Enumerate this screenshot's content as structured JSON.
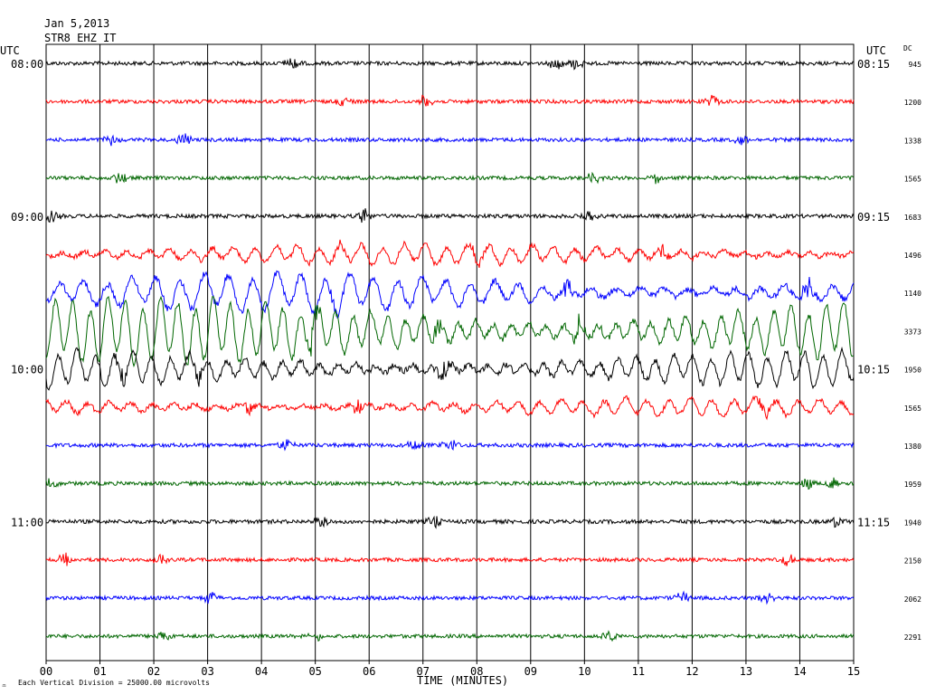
{
  "header": {
    "date": "Jan 5,2013",
    "station": "STR8 EHZ IT",
    "left_tz": "UTC",
    "right_tz": "UTC",
    "dc_label": "DC"
  },
  "footer": {
    "scale_note": "Each Vertical Division = 25000.00 microvolts",
    "corner_mark": "♒"
  },
  "chart_data": {
    "type": "line",
    "title": "",
    "xlabel": "TIME (MINUTES)",
    "ylabel": "",
    "xlim": [
      0,
      15
    ],
    "x_ticks": [
      "00",
      "01",
      "02",
      "03",
      "04",
      "05",
      "06",
      "07",
      "08",
      "09",
      "10",
      "11",
      "12",
      "13",
      "14",
      "15"
    ],
    "grid": true,
    "colors": [
      "#000000",
      "#ff0000",
      "#0000ff",
      "#006600"
    ],
    "left_hour_labels": [
      {
        "row": 0,
        "text": "08:00"
      },
      {
        "row": 4,
        "text": "09:00"
      },
      {
        "row": 8,
        "text": "10:00"
      },
      {
        "row": 12,
        "text": "11:00"
      }
    ],
    "right_hour_labels": [
      {
        "row": 0,
        "text": "08:15"
      },
      {
        "row": 4,
        "text": "09:15"
      },
      {
        "row": 8,
        "text": "10:15"
      },
      {
        "row": 12,
        "text": "11:15"
      }
    ],
    "dc_offsets": [
      945,
      1200,
      1338,
      1565,
      1683,
      1496,
      1140,
      3373,
      1950,
      1565,
      1380,
      1959,
      1940,
      2150,
      2062,
      2291
    ],
    "trace_amplitude": [
      0.25,
      0.2,
      0.2,
      0.2,
      0.3,
      0.7,
      1.3,
      2.2,
      1.2,
      0.6,
      0.3,
      0.25,
      0.3,
      0.2,
      0.2,
      0.2
    ]
  }
}
